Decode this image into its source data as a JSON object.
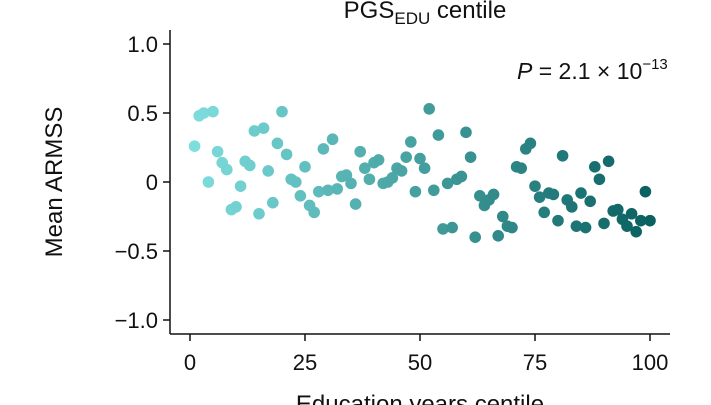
{
  "chart_data": {
    "type": "scatter",
    "title_main": "PGS",
    "title_sub": "EDU",
    "title_tail": " centile",
    "xlabel": "Education years centile",
    "ylabel": "Mean ARMSS",
    "xlim": [
      -3,
      104
    ],
    "ylim": [
      -1.1,
      1.1
    ],
    "xticks": [
      0,
      25,
      50,
      75,
      100
    ],
    "xtick_labels": [
      "0",
      "25",
      "50",
      "75",
      "100"
    ],
    "yticks": [
      1.0,
      0.5,
      0,
      -0.5,
      -1.0
    ],
    "ytick_labels": [
      "1.0",
      "0.5",
      "0",
      "−0.5",
      "−1.0"
    ],
    "annotation": {
      "p_label": "P",
      "p_value_text": " = 2.1 × 10",
      "exponent": "−13"
    },
    "color_scale": {
      "low": "#7fdede",
      "high": "#0b6060"
    },
    "points": [
      {
        "x": 1,
        "y": 0.26
      },
      {
        "x": 2,
        "y": 0.48
      },
      {
        "x": 3,
        "y": 0.5
      },
      {
        "x": 4,
        "y": 0.0
      },
      {
        "x": 5,
        "y": 0.51
      },
      {
        "x": 6,
        "y": 0.22
      },
      {
        "x": 7,
        "y": 0.14
      },
      {
        "x": 8,
        "y": 0.09
      },
      {
        "x": 9,
        "y": -0.2
      },
      {
        "x": 10,
        "y": -0.18
      },
      {
        "x": 11,
        "y": -0.03
      },
      {
        "x": 12,
        "y": 0.15
      },
      {
        "x": 13,
        "y": 0.12
      },
      {
        "x": 14,
        "y": 0.37
      },
      {
        "x": 15,
        "y": -0.23
      },
      {
        "x": 16,
        "y": 0.39
      },
      {
        "x": 17,
        "y": 0.08
      },
      {
        "x": 18,
        "y": -0.15
      },
      {
        "x": 19,
        "y": 0.28
      },
      {
        "x": 20,
        "y": 0.51
      },
      {
        "x": 21,
        "y": 0.2
      },
      {
        "x": 22,
        "y": 0.02
      },
      {
        "x": 23,
        "y": 0.0
      },
      {
        "x": 24,
        "y": -0.1
      },
      {
        "x": 25,
        "y": 0.11
      },
      {
        "x": 26,
        "y": -0.17
      },
      {
        "x": 27,
        "y": -0.22
      },
      {
        "x": 28,
        "y": -0.07
      },
      {
        "x": 29,
        "y": 0.24
      },
      {
        "x": 30,
        "y": -0.06
      },
      {
        "x": 31,
        "y": 0.31
      },
      {
        "x": 32,
        "y": -0.05
      },
      {
        "x": 33,
        "y": 0.04
      },
      {
        "x": 34,
        "y": 0.05
      },
      {
        "x": 35,
        "y": -0.01
      },
      {
        "x": 36,
        "y": -0.16
      },
      {
        "x": 37,
        "y": 0.22
      },
      {
        "x": 38,
        "y": 0.1
      },
      {
        "x": 39,
        "y": 0.02
      },
      {
        "x": 40,
        "y": 0.14
      },
      {
        "x": 41,
        "y": 0.16
      },
      {
        "x": 42,
        "y": -0.01
      },
      {
        "x": 43,
        "y": 0.0
      },
      {
        "x": 44,
        "y": 0.03
      },
      {
        "x": 45,
        "y": 0.1
      },
      {
        "x": 46,
        "y": 0.08
      },
      {
        "x": 47,
        "y": 0.18
      },
      {
        "x": 48,
        "y": 0.29
      },
      {
        "x": 49,
        "y": -0.07
      },
      {
        "x": 50,
        "y": 0.17
      },
      {
        "x": 51,
        "y": 0.1
      },
      {
        "x": 52,
        "y": 0.53
      },
      {
        "x": 53,
        "y": -0.06
      },
      {
        "x": 54,
        "y": 0.34
      },
      {
        "x": 55,
        "y": -0.34
      },
      {
        "x": 56,
        "y": -0.01
      },
      {
        "x": 57,
        "y": -0.33
      },
      {
        "x": 58,
        "y": 0.02
      },
      {
        "x": 59,
        "y": 0.04
      },
      {
        "x": 60,
        "y": 0.36
      },
      {
        "x": 61,
        "y": 0.18
      },
      {
        "x": 62,
        "y": -0.4
      },
      {
        "x": 63,
        "y": -0.1
      },
      {
        "x": 64,
        "y": -0.17
      },
      {
        "x": 65,
        "y": -0.13
      },
      {
        "x": 66,
        "y": -0.09
      },
      {
        "x": 67,
        "y": -0.39
      },
      {
        "x": 68,
        "y": -0.25
      },
      {
        "x": 69,
        "y": -0.32
      },
      {
        "x": 70,
        "y": -0.33
      },
      {
        "x": 71,
        "y": 0.11
      },
      {
        "x": 72,
        "y": 0.1
      },
      {
        "x": 73,
        "y": 0.24
      },
      {
        "x": 74,
        "y": 0.28
      },
      {
        "x": 75,
        "y": -0.03
      },
      {
        "x": 76,
        "y": -0.11
      },
      {
        "x": 77,
        "y": -0.22
      },
      {
        "x": 78,
        "y": -0.08
      },
      {
        "x": 79,
        "y": -0.09
      },
      {
        "x": 80,
        "y": -0.28
      },
      {
        "x": 81,
        "y": 0.19
      },
      {
        "x": 82,
        "y": -0.13
      },
      {
        "x": 83,
        "y": -0.18
      },
      {
        "x": 84,
        "y": -0.32
      },
      {
        "x": 85,
        "y": -0.08
      },
      {
        "x": 86,
        "y": -0.33
      },
      {
        "x": 87,
        "y": -0.14
      },
      {
        "x": 88,
        "y": 0.11
      },
      {
        "x": 89,
        "y": 0.02
      },
      {
        "x": 90,
        "y": -0.3
      },
      {
        "x": 91,
        "y": 0.15
      },
      {
        "x": 92,
        "y": -0.21
      },
      {
        "x": 93,
        "y": -0.2
      },
      {
        "x": 94,
        "y": -0.27
      },
      {
        "x": 95,
        "y": -0.32
      },
      {
        "x": 96,
        "y": -0.23
      },
      {
        "x": 97,
        "y": -0.36
      },
      {
        "x": 98,
        "y": -0.28
      },
      {
        "x": 99,
        "y": -0.07
      },
      {
        "x": 100,
        "y": -0.28
      }
    ]
  }
}
